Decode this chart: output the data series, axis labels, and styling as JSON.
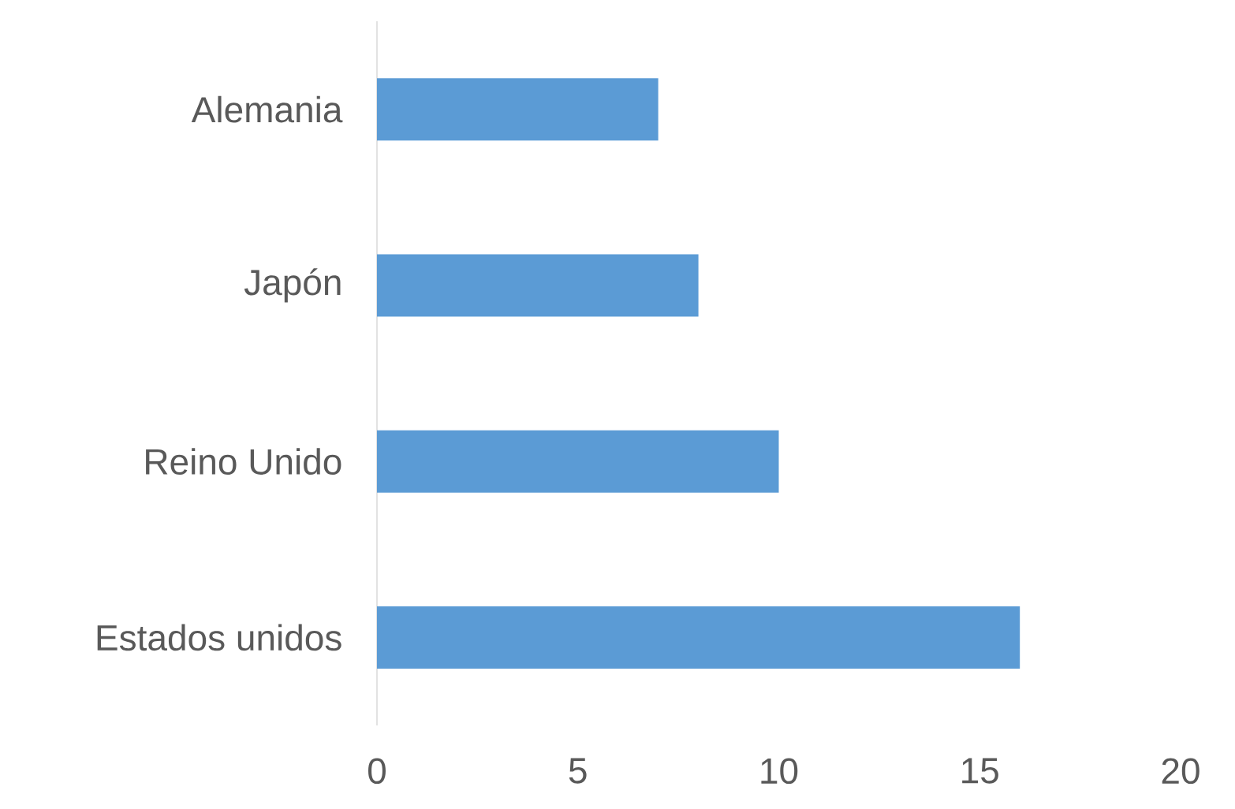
{
  "chart_data": {
    "type": "bar",
    "orientation": "horizontal",
    "categories": [
      "Alemania",
      "Japón",
      "Reino Unido",
      "Estados unidos"
    ],
    "values": [
      7,
      8,
      10,
      16
    ],
    "color": "#5b9bd5",
    "xlim": [
      0,
      20
    ],
    "xticks": [
      0,
      5,
      10,
      15,
      20
    ]
  }
}
